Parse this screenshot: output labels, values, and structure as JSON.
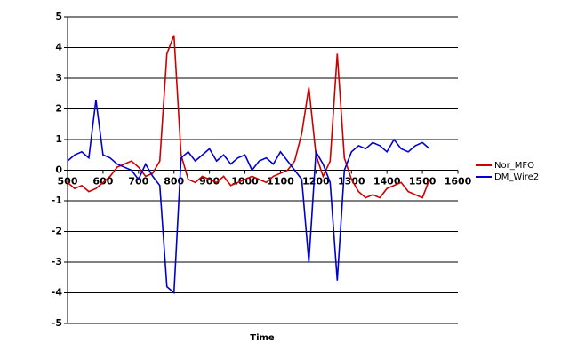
{
  "chart_data": {
    "type": "line",
    "x_label": "Time",
    "x": [
      500,
      520,
      540,
      560,
      580,
      600,
      620,
      640,
      660,
      680,
      700,
      720,
      740,
      760,
      780,
      800,
      820,
      840,
      860,
      880,
      900,
      920,
      940,
      960,
      980,
      1000,
      1020,
      1040,
      1060,
      1080,
      1100,
      1120,
      1140,
      1160,
      1180,
      1200,
      1220,
      1240,
      1260,
      1280,
      1300,
      1320,
      1340,
      1360,
      1380,
      1400,
      1420,
      1440,
      1460,
      1480,
      1500,
      1520
    ],
    "series": [
      {
        "name": "Nor_MFO",
        "color": "#cc0000",
        "values": [
          -0.4,
          -0.6,
          -0.5,
          -0.7,
          -0.6,
          -0.4,
          -0.2,
          0.1,
          0.2,
          0.3,
          0.1,
          -0.2,
          -0.1,
          0.3,
          3.8,
          4.4,
          0.5,
          -0.3,
          -0.4,
          -0.2,
          -0.3,
          -0.4,
          -0.2,
          -0.5,
          -0.4,
          -0.3,
          -0.2,
          -0.3,
          -0.4,
          -0.2,
          -0.1,
          0.0,
          0.3,
          1.2,
          2.7,
          0.5,
          -0.2,
          0.3,
          3.8,
          0.4,
          -0.3,
          -0.7,
          -0.9,
          -0.8,
          -0.9,
          -0.6,
          -0.5,
          -0.4,
          -0.7,
          -0.8,
          -0.9,
          -0.3
        ]
      },
      {
        "name": "DM_Wire2",
        "color": "#0000cc",
        "values": [
          0.3,
          0.5,
          0.6,
          0.4,
          2.3,
          0.5,
          0.4,
          0.2,
          0.1,
          0.0,
          -0.3,
          0.2,
          -0.2,
          -0.5,
          -3.8,
          -4.0,
          0.4,
          0.6,
          0.3,
          0.5,
          0.7,
          0.3,
          0.5,
          0.2,
          0.4,
          0.5,
          0.0,
          0.3,
          0.4,
          0.2,
          0.6,
          0.3,
          0.0,
          -0.3,
          -3.0,
          0.6,
          0.2,
          -0.4,
          -3.6,
          0.0,
          0.6,
          0.8,
          0.7,
          0.9,
          0.8,
          0.6,
          1.0,
          0.7,
          0.6,
          0.8,
          0.9,
          0.7
        ]
      }
    ],
    "xlim": [
      500,
      1600
    ],
    "xticks": [
      500,
      600,
      700,
      800,
      900,
      1000,
      1100,
      1200,
      1300,
      1400,
      1500,
      1600
    ],
    "ylim": [
      -5,
      5
    ],
    "yticks": [
      -5,
      -4,
      -3,
      -2,
      -1,
      0,
      1,
      2,
      3,
      4,
      5
    ],
    "grid": true,
    "legend": "right"
  }
}
